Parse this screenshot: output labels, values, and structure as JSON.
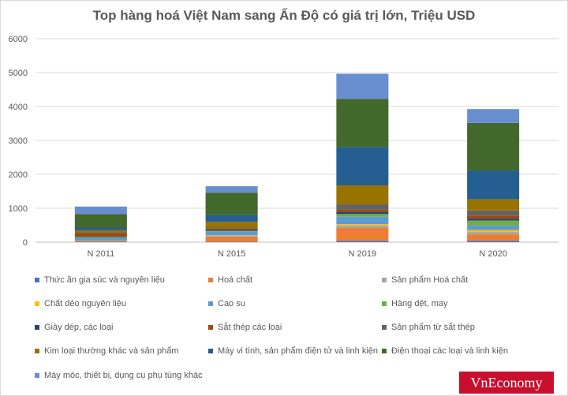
{
  "chart_data": {
    "type": "bar",
    "stacked": true,
    "title": "Top hàng hoá Việt Nam sang Ấn Độ có giá trị lớn, Triệu USD",
    "xlabel": "",
    "ylabel": "",
    "ylim": [
      0,
      6000
    ],
    "yticks": [
      "0",
      "1000",
      "2000",
      "3000",
      "4000",
      "5000",
      "6000"
    ],
    "grid": true,
    "legend_position": "bottom",
    "categories": [
      "N 2011",
      "N 2015",
      "N 2019",
      "N 2020"
    ],
    "series": [
      {
        "name": "Thức ăn gia súc và nguyên liệu",
        "color": "#4472c4",
        "values": [
          10,
          15,
          40,
          40
        ]
      },
      {
        "name": "Hoá chất",
        "color": "#ed7d31",
        "values": [
          25,
          150,
          380,
          190
        ]
      },
      {
        "name": "Sản phẩm Hoá chất",
        "color": "#a5a5a5",
        "values": [
          10,
          30,
          70,
          70
        ]
      },
      {
        "name": "Chất dẻo nguyên liệu",
        "color": "#ffc000",
        "values": [
          5,
          10,
          40,
          60
        ]
      },
      {
        "name": "Cao su",
        "color": "#5b9bd5",
        "values": [
          80,
          100,
          220,
          130
        ]
      },
      {
        "name": "Hàng dệt, may",
        "color": "#70ad47",
        "values": [
          20,
          30,
          80,
          150
        ]
      },
      {
        "name": "Giày dép, các loại",
        "color": "#264478",
        "values": [
          20,
          25,
          55,
          55
        ]
      },
      {
        "name": "Sắt thép các loại",
        "color": "#9e480e",
        "values": [
          100,
          40,
          70,
          90
        ]
      },
      {
        "name": "Sản phẩm từ sắt thép",
        "color": "#636363",
        "values": [
          20,
          30,
          160,
          150
        ]
      },
      {
        "name": "Kim loại thường khác và sản phẩm",
        "color": "#997300",
        "values": [
          60,
          170,
          560,
          330
        ]
      },
      {
        "name": "Máy vi tính, sản phẩm điện tử và linh kiện",
        "color": "#255e91",
        "values": [
          80,
          200,
          1130,
          850
        ]
      },
      {
        "name": "Điện thoại các loại và linh kiện",
        "color": "#43682b",
        "values": [
          400,
          660,
          1420,
          1400
        ]
      },
      {
        "name": "Máy móc, thiết bị, dụng cụ phụ tùng khác",
        "color": "#698ed0",
        "values": [
          220,
          190,
          740,
          410
        ]
      }
    ]
  },
  "watermark": "VnEconomy"
}
